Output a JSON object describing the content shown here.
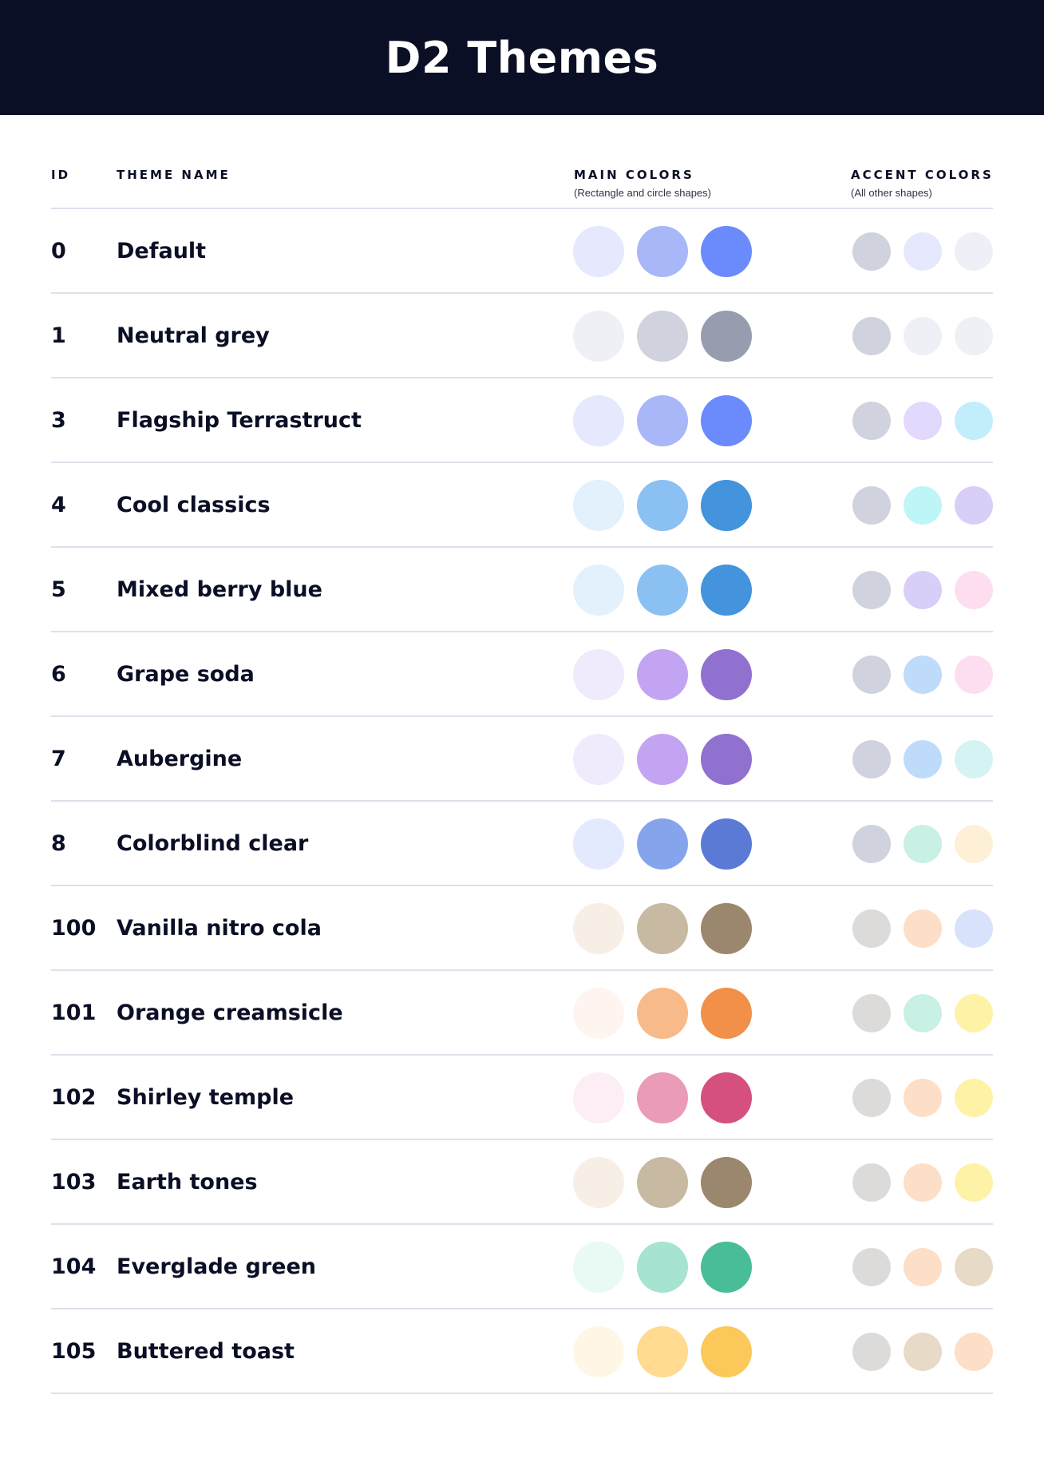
{
  "title": "D2 Themes",
  "columns": {
    "id": "ID",
    "name": "THEME NAME",
    "main": "MAIN COLORS",
    "main_sub": "(Rectangle and circle shapes)",
    "accent": "ACCENT COLORS",
    "accent_sub": "(All other shapes)"
  },
  "themes": [
    {
      "id": "0",
      "name": "Default",
      "main": [
        "#E6E8FD",
        "#A8B7F7",
        "#6B8BFC"
      ],
      "accent": [
        "#D0D2DD",
        "#E6E8FD",
        "#EEF0F7"
      ]
    },
    {
      "id": "1",
      "name": "Neutral grey",
      "main": [
        "#EEF0F6",
        "#D0D2DD",
        "#979DAE"
      ],
      "accent": [
        "#D0D2DD",
        "#EEF0F6",
        "#EEF0F6"
      ]
    },
    {
      "id": "3",
      "name": "Flagship Terrastruct",
      "main": [
        "#E6E8FD",
        "#A8B7F7",
        "#6B8BFC"
      ],
      "accent": [
        "#D0D2DD",
        "#E2D9FC",
        "#C2EEFC"
      ]
    },
    {
      "id": "4",
      "name": "Cool classics",
      "main": [
        "#E2F1FC",
        "#8BC0F3",
        "#4393DD"
      ],
      "accent": [
        "#D0D2DD",
        "#BEF5F6",
        "#D9CEF8"
      ]
    },
    {
      "id": "5",
      "name": "Mixed berry blue",
      "main": [
        "#E2F1FC",
        "#8BC0F3",
        "#4393DD"
      ],
      "accent": [
        "#D0D2DD",
        "#D9CEF8",
        "#FDDDF0"
      ]
    },
    {
      "id": "6",
      "name": "Grape soda",
      "main": [
        "#EFEBFD",
        "#C3A4F2",
        "#9171D0"
      ],
      "accent": [
        "#D0D2DD",
        "#BEDCFA",
        "#FDDDF0"
      ]
    },
    {
      "id": "7",
      "name": "Aubergine",
      "main": [
        "#EFEBFD",
        "#C3A4F2",
        "#9171D0"
      ],
      "accent": [
        "#D0D2DD",
        "#BEDCFA",
        "#D5F3F3"
      ]
    },
    {
      "id": "8",
      "name": "Colorblind clear",
      "main": [
        "#E4EAFD",
        "#86A4EC",
        "#5A7AD6"
      ],
      "accent": [
        "#D0D2DD",
        "#C8F0E4",
        "#FEF0D6"
      ]
    },
    {
      "id": "100",
      "name": "Vanilla nitro cola",
      "main": [
        "#F7EFE6",
        "#C8B9A2",
        "#9B876D"
      ],
      "accent": [
        "#DDDBDA",
        "#FDDEC7",
        "#D8E2FB"
      ]
    },
    {
      "id": "101",
      "name": "Orange creamsicle",
      "main": [
        "#FFF5F0",
        "#F9BA8A",
        "#F2904A"
      ],
      "accent": [
        "#DDDBDA",
        "#C8F0E4",
        "#FEF2A7"
      ]
    },
    {
      "id": "102",
      "name": "Shirley temple",
      "main": [
        "#FCEEF4",
        "#EA9BB7",
        "#D5507F"
      ],
      "accent": [
        "#DDDBDA",
        "#FDDEC7",
        "#FEF2A7"
      ]
    },
    {
      "id": "103",
      "name": "Earth tones",
      "main": [
        "#F7EFE6",
        "#C8B9A2",
        "#9B876D"
      ],
      "accent": [
        "#DDDBDA",
        "#FDDEC7",
        "#FEF2A7"
      ]
    },
    {
      "id": "104",
      "name": "Everglade green",
      "main": [
        "#E8FAF3",
        "#A7E3D1",
        "#48BD98"
      ],
      "accent": [
        "#DDDBDA",
        "#FDDEC7",
        "#E7DBC8"
      ]
    },
    {
      "id": "105",
      "name": "Buttered toast",
      "main": [
        "#FFF7E6",
        "#FFDA8F",
        "#FCC85A"
      ],
      "accent": [
        "#DDDBDA",
        "#E7DBC8",
        "#FDDEC7"
      ]
    }
  ]
}
